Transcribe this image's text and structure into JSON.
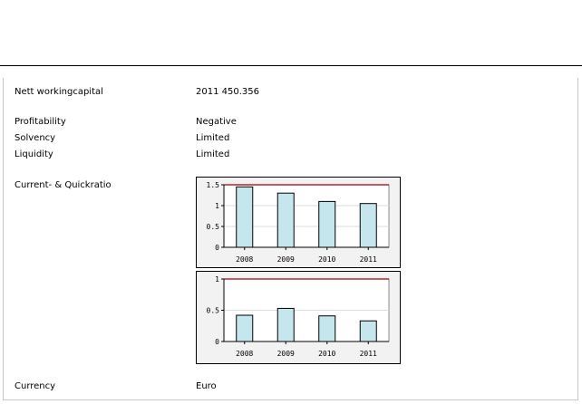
{
  "rows": {
    "nett_working_capital": {
      "label": "Nett workingcapital",
      "value": "2011 450.356"
    },
    "profitability": {
      "label": "Profitability",
      "value": "Negative"
    },
    "solvency": {
      "label": "Solvency",
      "value": "Limited"
    },
    "liquidity": {
      "label": "Liquidity",
      "value": "Limited"
    },
    "ratios": {
      "label": "Current- & Quickratio"
    },
    "currency": {
      "label": "Currency",
      "value": "Euro"
    }
  },
  "colors": {
    "bar_fill": "#c6e6ee",
    "reference_line": "#a00000",
    "chart_bg": "#f2f2f2",
    "plot_bg": "#ffffff"
  },
  "chart_data": [
    {
      "type": "bar",
      "categories": [
        "2008",
        "2009",
        "2010",
        "2011"
      ],
      "values": [
        1.45,
        1.3,
        1.1,
        1.05
      ],
      "ylim": [
        0,
        1.5
      ],
      "yticks": [
        0,
        0.5,
        1,
        1.5
      ],
      "ytick_labels": [
        "0",
        "0.5",
        "1",
        "1.5"
      ],
      "reference_line": 1.5,
      "grid": true
    },
    {
      "type": "bar",
      "categories": [
        "2008",
        "2009",
        "2010",
        "2011"
      ],
      "values": [
        0.42,
        0.53,
        0.41,
        0.33
      ],
      "ylim": [
        0,
        1
      ],
      "yticks": [
        0,
        0.5,
        1
      ],
      "ytick_labels": [
        "0",
        "0.5",
        "1"
      ],
      "reference_line": 1,
      "grid": true
    }
  ]
}
